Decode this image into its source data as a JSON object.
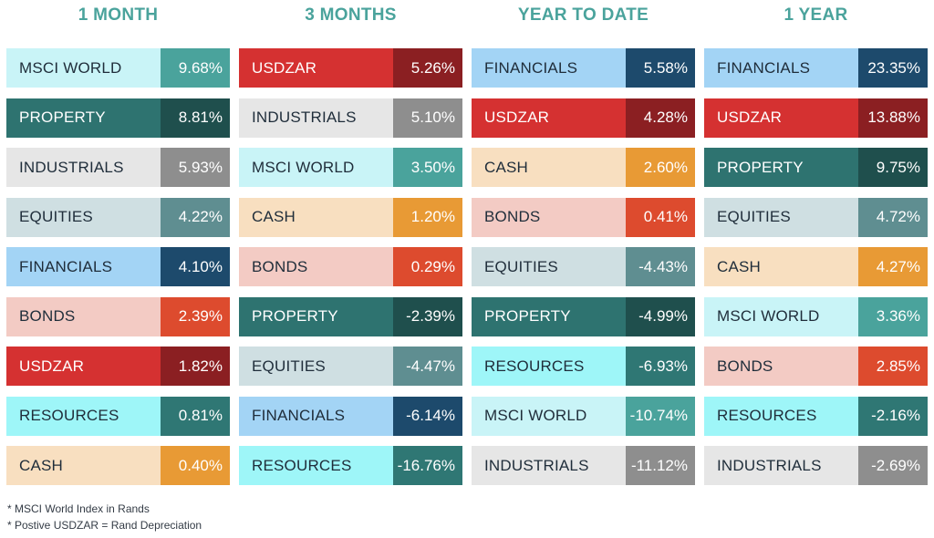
{
  "colors": {
    "title": "#4aa39c",
    "assets": {
      "MSCI WORLD": {
        "bg": "#c9f4f7",
        "val": "#4aa39c",
        "fg": "#1f2d3a"
      },
      "PROPERTY": {
        "bg": "#2e7370",
        "val": "#1f4f4d",
        "fg": "#ffffff"
      },
      "INDUSTRIALS": {
        "bg": "#e6e6e6",
        "val": "#8e8e8e",
        "fg": "#1f2d3a"
      },
      "EQUITIES": {
        "bg": "#cfdfe2",
        "val": "#5f8e91",
        "fg": "#1f2d3a"
      },
      "FINANCIALS": {
        "bg": "#a3d4f5",
        "val": "#1d4a6c",
        "fg": "#1f2d3a"
      },
      "BONDS": {
        "bg": "#f3cbc4",
        "val": "#dd4b2e",
        "fg": "#1f2d3a"
      },
      "USDZAR": {
        "bg": "#d53131",
        "val": "#8b1f22",
        "fg": "#ffffff"
      },
      "RESOURCES": {
        "bg": "#9ef6f8",
        "val": "#2f7774",
        "fg": "#1f2d3a"
      },
      "CASH": {
        "bg": "#f8dfc0",
        "val": "#e89a35",
        "fg": "#1f2d3a"
      }
    }
  },
  "chart_data": {
    "type": "table",
    "columns": [
      {
        "title": "1 MONTH",
        "rows": [
          {
            "asset": "MSCI WORLD",
            "value": "9.68%"
          },
          {
            "asset": "PROPERTY",
            "value": "8.81%"
          },
          {
            "asset": "INDUSTRIALS",
            "value": "5.93%"
          },
          {
            "asset": "EQUITIES",
            "value": "4.22%"
          },
          {
            "asset": "FINANCIALS",
            "value": "4.10%"
          },
          {
            "asset": "BONDS",
            "value": "2.39%"
          },
          {
            "asset": "USDZAR",
            "value": "1.82%"
          },
          {
            "asset": "RESOURCES",
            "value": "0.81%"
          },
          {
            "asset": "CASH",
            "value": "0.40%"
          }
        ]
      },
      {
        "title": "3 MONTHS",
        "rows": [
          {
            "asset": "USDZAR",
            "value": "5.26%"
          },
          {
            "asset": "INDUSTRIALS",
            "value": "5.10%"
          },
          {
            "asset": "MSCI WORLD",
            "value": "3.50%"
          },
          {
            "asset": "CASH",
            "value": "1.20%"
          },
          {
            "asset": "BONDS",
            "value": "0.29%"
          },
          {
            "asset": "PROPERTY",
            "value": "-2.39%"
          },
          {
            "asset": "EQUITIES",
            "value": "-4.47%"
          },
          {
            "asset": "FINANCIALS",
            "value": "-6.14%"
          },
          {
            "asset": "RESOURCES",
            "value": "-16.76%"
          }
        ]
      },
      {
        "title": "YEAR TO DATE",
        "rows": [
          {
            "asset": "FINANCIALS",
            "value": "5.58%"
          },
          {
            "asset": "USDZAR",
            "value": "4.28%"
          },
          {
            "asset": "CASH",
            "value": "2.60%"
          },
          {
            "asset": "BONDS",
            "value": "0.41%"
          },
          {
            "asset": "EQUITIES",
            "value": "-4.43%"
          },
          {
            "asset": "PROPERTY",
            "value": "-4.99%"
          },
          {
            "asset": "RESOURCES",
            "value": "-6.93%"
          },
          {
            "asset": "MSCI WORLD",
            "value": "-10.74%"
          },
          {
            "asset": "INDUSTRIALS",
            "value": "-11.12%"
          }
        ]
      },
      {
        "title": "1 YEAR",
        "rows": [
          {
            "asset": "FINANCIALS",
            "value": "23.35%"
          },
          {
            "asset": "USDZAR",
            "value": "13.88%"
          },
          {
            "asset": "PROPERTY",
            "value": "9.75%"
          },
          {
            "asset": "EQUITIES",
            "value": "4.72%"
          },
          {
            "asset": "CASH",
            "value": "4.27%"
          },
          {
            "asset": "MSCI WORLD",
            "value": "3.36%"
          },
          {
            "asset": "BONDS",
            "value": "2.85%"
          },
          {
            "asset": "RESOURCES",
            "value": "-2.16%"
          },
          {
            "asset": "INDUSTRIALS",
            "value": "-2.69%"
          }
        ]
      }
    ],
    "footnotes": [
      "* MSCI World Index in  Rands",
      "* Postive USDZAR = Rand Depreciation"
    ]
  }
}
